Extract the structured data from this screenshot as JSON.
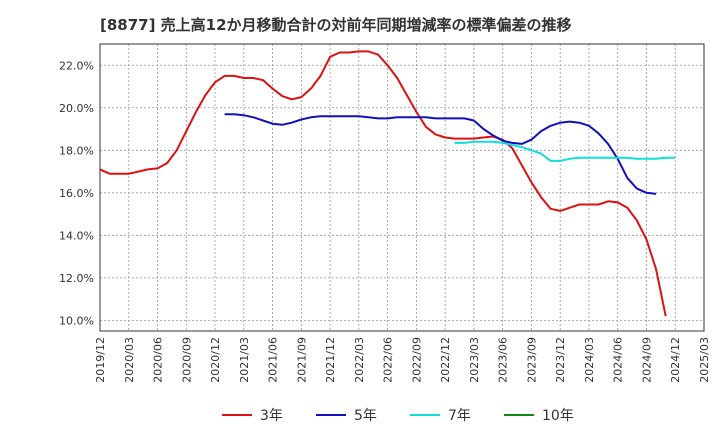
{
  "chart_data": {
    "type": "line",
    "title": "[8877]  売上高12か月移動合計の対前年同期増減率の標準偏差の推移",
    "xlabel": "",
    "ylabel": "",
    "ylim": [
      9.5,
      23.0
    ],
    "y_ticks": [
      10.0,
      12.0,
      14.0,
      16.0,
      18.0,
      20.0,
      22.0
    ],
    "y_tick_labels": [
      "10.0%",
      "12.0%",
      "14.0%",
      "16.0%",
      "18.0%",
      "20.0%",
      "22.0%"
    ],
    "x_tick_labels": [
      "2019/12",
      "2020/03",
      "2020/06",
      "2020/09",
      "2020/12",
      "2021/03",
      "2021/06",
      "2021/09",
      "2021/12",
      "2022/03",
      "2022/06",
      "2022/09",
      "2022/12",
      "2023/03",
      "2023/06",
      "2023/09",
      "2023/12",
      "2024/03",
      "2024/06",
      "2024/09",
      "2024/12",
      "2025/03"
    ],
    "grid": true,
    "legend_position": "bottom",
    "series": [
      {
        "name": "3年",
        "color": "#dd1111",
        "start": "2019/12",
        "values": [
          17.1,
          16.9,
          16.9,
          16.9,
          17.0,
          17.1,
          17.15,
          17.4,
          18.0,
          18.9,
          19.8,
          20.6,
          21.2,
          21.5,
          21.5,
          21.4,
          21.4,
          21.3,
          20.9,
          20.55,
          20.4,
          20.5,
          20.9,
          21.5,
          22.4,
          22.6,
          22.6,
          22.65,
          22.65,
          22.5,
          22.0,
          21.4,
          20.6,
          19.8,
          19.1,
          18.75,
          18.6,
          18.55,
          18.55,
          18.55,
          18.6,
          18.65,
          18.5,
          18.1,
          17.3,
          16.5,
          15.8,
          15.25,
          15.15,
          15.3,
          15.45,
          15.45,
          15.45,
          15.6,
          15.55,
          15.3,
          14.7,
          13.8,
          12.4,
          10.2
        ]
      },
      {
        "name": "5年",
        "color": "#1111bb",
        "start": "2021/01",
        "values": [
          19.7,
          19.7,
          19.65,
          19.55,
          19.4,
          19.25,
          19.2,
          19.3,
          19.45,
          19.55,
          19.6,
          19.6,
          19.6,
          19.6,
          19.6,
          19.55,
          19.5,
          19.5,
          19.55,
          19.55,
          19.55,
          19.55,
          19.5,
          19.5,
          19.5,
          19.5,
          19.4,
          19.0,
          18.7,
          18.45,
          18.35,
          18.3,
          18.5,
          18.9,
          19.15,
          19.3,
          19.35,
          19.3,
          19.15,
          18.8,
          18.3,
          17.6,
          16.7,
          16.2,
          16.0,
          15.95
        ]
      },
      {
        "name": "7年",
        "color": "#11dddd",
        "start": "2023/01",
        "values": [
          18.35,
          18.35,
          18.4,
          18.4,
          18.4,
          18.35,
          18.25,
          18.15,
          18.0,
          17.85,
          17.5,
          17.5,
          17.6,
          17.65,
          17.65,
          17.65,
          17.65,
          17.65,
          17.65,
          17.6,
          17.6,
          17.6,
          17.65,
          17.65
        ]
      },
      {
        "name": "10年",
        "color": "#118811",
        "start": "2024/12",
        "values": []
      }
    ]
  }
}
